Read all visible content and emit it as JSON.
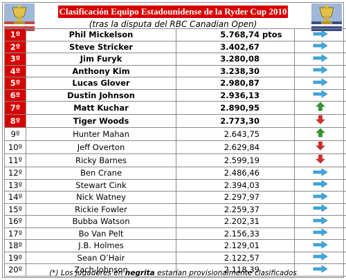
{
  "header": {
    "title": "Clasificación Equipo Estadounidense de la Ryder Cup 2010",
    "subtitle": "(tras la disputa del RBC Canadian Open)"
  },
  "colors": {
    "accent_red": "#d70000",
    "arrow_blue": "#3fa9e0",
    "arrow_green": "#2e9a2a",
    "arrow_red": "#d92b2b"
  },
  "rows": [
    {
      "pos": "1º",
      "name": "Phil Mickelson",
      "points": "5.768,74",
      "suffix": " ptos",
      "qualified": true,
      "trend": "same"
    },
    {
      "pos": "2º",
      "name": "Steve Stricker",
      "points": "3.402,67",
      "suffix": "",
      "qualified": true,
      "trend": "same"
    },
    {
      "pos": "3º",
      "name": "Jim Furyk",
      "points": "3.280,08",
      "suffix": "",
      "qualified": true,
      "trend": "same"
    },
    {
      "pos": "4º",
      "name": "Anthony Kim",
      "points": "3.238,30",
      "suffix": "",
      "qualified": true,
      "trend": "same"
    },
    {
      "pos": "5º",
      "name": "Lucas Glover",
      "points": "2.980,87",
      "suffix": "",
      "qualified": true,
      "trend": "same"
    },
    {
      "pos": "6º",
      "name": "Dustin Johnson",
      "points": "2.936,13",
      "suffix": "",
      "qualified": true,
      "trend": "same"
    },
    {
      "pos": "7º",
      "name": "Matt Kuchar",
      "points": "2.890,95",
      "suffix": "",
      "qualified": true,
      "trend": "up"
    },
    {
      "pos": "8º",
      "name": "Tiger Woods",
      "points": "2.773,30",
      "suffix": "",
      "qualified": true,
      "trend": "down"
    },
    {
      "pos": "9º",
      "name": "Hunter Mahan",
      "points": "2.643,75",
      "suffix": "",
      "qualified": false,
      "trend": "up"
    },
    {
      "pos": "10º",
      "name": "Jeff Overton",
      "points": "2.629,84",
      "suffix": "",
      "qualified": false,
      "trend": "down"
    },
    {
      "pos": "11º",
      "name": "Ricky Barnes",
      "points": "2.599,19",
      "suffix": "",
      "qualified": false,
      "trend": "down"
    },
    {
      "pos": "12º",
      "name": "Ben Crane",
      "points": "2.486,46",
      "suffix": "",
      "qualified": false,
      "trend": "same"
    },
    {
      "pos": "13º",
      "name": "Stewart Cink",
      "points": "2.394,03",
      "suffix": "",
      "qualified": false,
      "trend": "same"
    },
    {
      "pos": "14º",
      "name": "Nick Watney",
      "points": "2.297,97",
      "suffix": "",
      "qualified": false,
      "trend": "same"
    },
    {
      "pos": "15º",
      "name": "Rickie Fowler",
      "points": "2.259,37",
      "suffix": "",
      "qualified": false,
      "trend": "same"
    },
    {
      "pos": "16º",
      "name": "Bubba Watson",
      "points": "2.202,31",
      "suffix": "",
      "qualified": false,
      "trend": "same"
    },
    {
      "pos": "17º",
      "name": "Bo Van Pelt",
      "points": "2.156,33",
      "suffix": "",
      "qualified": false,
      "trend": "same"
    },
    {
      "pos": "18º",
      "name": "J.B. Holmes",
      "points": "2.129,01",
      "suffix": "",
      "qualified": false,
      "trend": "same"
    },
    {
      "pos": "19º",
      "name": "Sean O’Hair",
      "points": "2.122,57",
      "suffix": "",
      "qualified": false,
      "trend": "same"
    },
    {
      "pos": "20º",
      "name": "Zach Johnson",
      "points": "2.118,39",
      "suffix": "",
      "qualified": false,
      "trend": "same"
    }
  ],
  "footer": {
    "pre": "(*) Los jugadores en ",
    "bold": "negrita",
    "post": " estarían provisionalmente clasificados"
  }
}
